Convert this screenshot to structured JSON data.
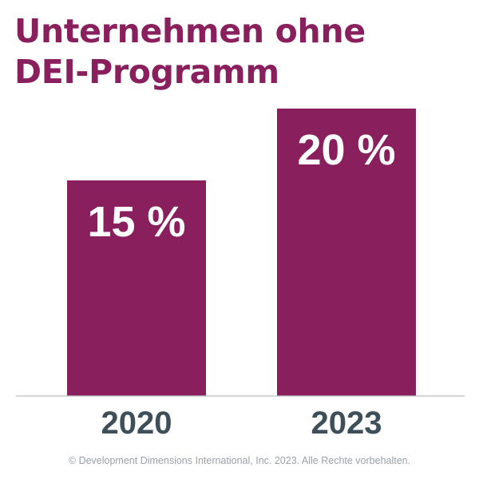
{
  "title": {
    "line1": "Unternehmen ohne",
    "line2": "DEI-Programm"
  },
  "colors": {
    "bar": "#8a1f5e",
    "title": "#8a1f5e",
    "tick": "#3f4f5a",
    "baseline": "#b9bec2",
    "footer": "#9aa1a6"
  },
  "chart_data": {
    "type": "bar",
    "categories": [
      "2020",
      "2023"
    ],
    "values": [
      15,
      20
    ],
    "data_labels": [
      "15 %",
      "20 %"
    ],
    "title": "Unternehmen ohne DEI-Programm",
    "xlabel": "",
    "ylabel": "",
    "ylim": [
      0,
      20
    ],
    "grid": false,
    "legend": "none"
  },
  "footer": "© Development Dimensions International, Inc. 2023. Alle Rechte vorbehalten."
}
